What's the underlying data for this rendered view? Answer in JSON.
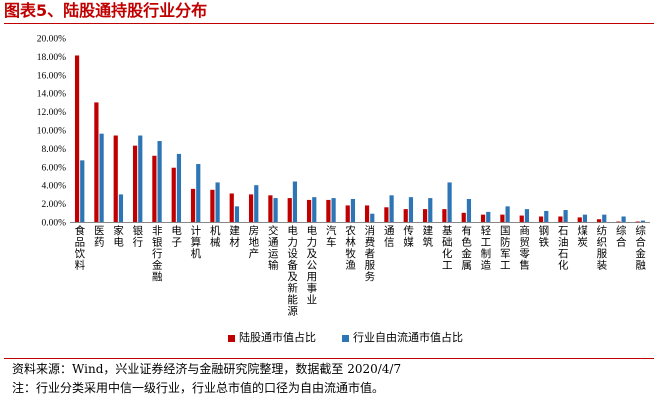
{
  "title": "图表5、陆股通持股行业分布",
  "legend_placement": "bottom",
  "colors": {
    "series1": "#c00000",
    "series2": "#2e75b6",
    "accent": "#c00000"
  },
  "source_note": "资料来源：Wind，兴业证券经济与金融研究院整理，数据截至 2020/4/7",
  "footnote": "注：行业分类采用中信一级行业，行业总市值的口径为自由流通市值。",
  "chart_data": {
    "type": "bar",
    "title": "",
    "xlabel": "",
    "ylabel": "",
    "ylim": [
      0,
      20
    ],
    "ytick_step": 2,
    "ytick_format": "percent_2dp",
    "grid": false,
    "categories": [
      "食品饮料",
      "医药",
      "家电",
      "银行",
      "非银行金融",
      "电子",
      "计算机",
      "机械",
      "建材",
      "房地产",
      "交通运输",
      "电力设备及新能源",
      "电力及公用事业",
      "汽车",
      "农林牧渔",
      "消费者服务",
      "通信",
      "传媒",
      "建筑",
      "基础化工",
      "有色金属",
      "轻工制造",
      "国防军工",
      "商贸零售",
      "钢铁",
      "石油石化",
      "煤炭",
      "纺织服装",
      "综合",
      "综合金融"
    ],
    "series": [
      {
        "name": "陆股通市值占比",
        "values": [
          18.1,
          13.0,
          9.4,
          8.3,
          7.2,
          5.9,
          3.6,
          3.5,
          3.1,
          3.0,
          2.9,
          2.6,
          2.4,
          2.4,
          1.8,
          1.8,
          1.6,
          1.4,
          1.4,
          1.4,
          1.0,
          0.8,
          0.8,
          0.7,
          0.6,
          0.6,
          0.5,
          0.3,
          0.05,
          0.05
        ]
      },
      {
        "name": "行业自由流通市值占比",
        "values": [
          6.7,
          9.6,
          3.0,
          9.4,
          8.8,
          7.4,
          6.3,
          4.3,
          1.7,
          4.0,
          2.6,
          4.4,
          2.7,
          2.6,
          2.5,
          0.9,
          2.9,
          2.7,
          2.6,
          4.3,
          2.5,
          1.1,
          1.7,
          1.4,
          1.2,
          1.3,
          0.8,
          0.8,
          0.6,
          0.15
        ]
      }
    ]
  }
}
